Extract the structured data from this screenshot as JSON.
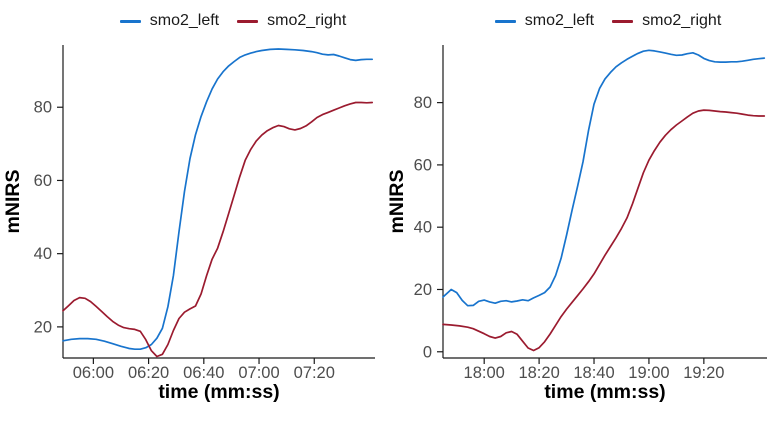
{
  "figure": {
    "background": "#FFFFFF",
    "axis_text_color": "#4D4D4D",
    "axis_title_color": "#000000",
    "axis_line_color": "#1A1A1A"
  },
  "chart_data": [
    {
      "type": "line",
      "title": "",
      "xlabel": "time (mm:ss)",
      "ylabel": "mNIRS",
      "grid": "off",
      "legend_position": "top-center",
      "x_unit": "seconds shown as mm:ss",
      "x_range_s": [
        349,
        462
      ],
      "y_range": [
        11.5,
        97
      ],
      "x_ticks": [
        {
          "value": 360,
          "label": "06:00"
        },
        {
          "value": 380,
          "label": "06:20"
        },
        {
          "value": 400,
          "label": "06:40"
        },
        {
          "value": 420,
          "label": "07:00"
        },
        {
          "value": 440,
          "label": "07:20"
        }
      ],
      "y_ticks": [
        20,
        40,
        60,
        80
      ],
      "series": [
        {
          "name": "smo2_left",
          "color": "#1874CD",
          "points": [
            [
              349,
              16.2
            ],
            [
              352,
              16.6
            ],
            [
              355,
              16.8
            ],
            [
              358,
              16.8
            ],
            [
              361,
              16.6
            ],
            [
              364,
              16.1
            ],
            [
              367,
              15.4
            ],
            [
              370,
              14.7
            ],
            [
              373,
              14.1
            ],
            [
              375,
              13.9
            ],
            [
              377,
              13.9
            ],
            [
              379,
              14.3
            ],
            [
              381,
              15.2
            ],
            [
              383,
              16.9
            ],
            [
              385,
              19.6
            ],
            [
              387,
              25.5
            ],
            [
              389,
              34
            ],
            [
              391,
              46
            ],
            [
              393,
              57
            ],
            [
              395,
              66
            ],
            [
              397,
              72.5
            ],
            [
              399,
              77.5
            ],
            [
              401,
              81.5
            ],
            [
              403,
              85
            ],
            [
              405,
              87.7
            ],
            [
              407,
              89.7
            ],
            [
              409,
              91.3
            ],
            [
              411,
              92.5
            ],
            [
              413,
              93.6
            ],
            [
              415,
              94.3
            ],
            [
              417,
              94.8
            ],
            [
              419,
              95.2
            ],
            [
              421,
              95.5
            ],
            [
              424,
              95.8
            ],
            [
              427,
              95.9
            ],
            [
              430,
              95.8
            ],
            [
              433,
              95.7
            ],
            [
              436,
              95.5
            ],
            [
              439,
              95.2
            ],
            [
              441,
              94.9
            ],
            [
              443,
              94.5
            ],
            [
              445,
              94.3
            ],
            [
              447,
              94.4
            ],
            [
              449,
              94
            ],
            [
              451,
              93.5
            ],
            [
              453,
              93
            ],
            [
              455,
              92.8
            ],
            [
              457,
              93
            ],
            [
              459,
              93.1
            ],
            [
              461,
              93.1
            ]
          ]
        },
        {
          "name": "smo2_right",
          "color": "#9B1B2F",
          "points": [
            [
              349,
              24.4
            ],
            [
              351,
              25.8
            ],
            [
              353,
              27.2
            ],
            [
              355,
              28
            ],
            [
              357,
              27.8
            ],
            [
              359,
              26.9
            ],
            [
              361,
              25.6
            ],
            [
              363,
              24.2
            ],
            [
              365,
              22.8
            ],
            [
              367,
              21.5
            ],
            [
              369,
              20.5
            ],
            [
              371,
              19.8
            ],
            [
              373,
              19.5
            ],
            [
              375,
              19.3
            ],
            [
              377,
              18.8
            ],
            [
              379,
              16.5
            ],
            [
              381,
              13.5
            ],
            [
              383,
              11.9
            ],
            [
              385,
              12.5
            ],
            [
              387,
              15.2
            ],
            [
              389,
              19
            ],
            [
              391,
              22.3
            ],
            [
              393,
              24
            ],
            [
              395,
              24.9
            ],
            [
              397,
              25.7
            ],
            [
              399,
              29
            ],
            [
              401,
              34
            ],
            [
              403,
              38.5
            ],
            [
              405,
              41.5
            ],
            [
              407,
              46
            ],
            [
              409,
              51
            ],
            [
              411,
              56
            ],
            [
              413,
              61
            ],
            [
              415,
              65.5
            ],
            [
              417,
              68.5
            ],
            [
              419,
              70.8
            ],
            [
              421,
              72.4
            ],
            [
              423,
              73.6
            ],
            [
              425,
              74.4
            ],
            [
              427,
              75
            ],
            [
              429,
              74.7
            ],
            [
              431,
              74.1
            ],
            [
              433,
              73.8
            ],
            [
              435,
              74.2
            ],
            [
              437,
              74.9
            ],
            [
              439,
              76
            ],
            [
              441,
              77.2
            ],
            [
              443,
              78
            ],
            [
              445,
              78.6
            ],
            [
              447,
              79.2
            ],
            [
              449,
              79.8
            ],
            [
              451,
              80.4
            ],
            [
              453,
              80.9
            ],
            [
              455,
              81.3
            ],
            [
              457,
              81.3
            ],
            [
              459,
              81.2
            ],
            [
              461,
              81.3
            ]
          ]
        }
      ]
    },
    {
      "type": "line",
      "title": "",
      "xlabel": "time (mm:ss)",
      "ylabel": "mNIRS",
      "grid": "off",
      "legend_position": "top-center",
      "x_unit": "seconds shown as mm:ss",
      "x_range_s": [
        1065,
        1183
      ],
      "y_range": [
        -2,
        98.5
      ],
      "x_ticks": [
        {
          "value": 1080,
          "label": "18:00"
        },
        {
          "value": 1100,
          "label": "18:20"
        },
        {
          "value": 1120,
          "label": "18:40"
        },
        {
          "value": 1140,
          "label": "19:00"
        },
        {
          "value": 1160,
          "label": "19:20"
        }
      ],
      "y_ticks": [
        0,
        20,
        40,
        60,
        80
      ],
      "series": [
        {
          "name": "smo2_left",
          "color": "#1874CD",
          "points": [
            [
              1065,
              17.6
            ],
            [
              1067,
              19.2
            ],
            [
              1068,
              20
            ],
            [
              1070,
              19
            ],
            [
              1072,
              16.5
            ],
            [
              1074,
              14.8
            ],
            [
              1076,
              14.9
            ],
            [
              1078,
              16.2
            ],
            [
              1080,
              16.6
            ],
            [
              1082,
              16
            ],
            [
              1084,
              15.6
            ],
            [
              1086,
              16.2
            ],
            [
              1088,
              16.4
            ],
            [
              1090,
              16
            ],
            [
              1092,
              16.3
            ],
            [
              1094,
              16.7
            ],
            [
              1096,
              16.4
            ],
            [
              1098,
              17.3
            ],
            [
              1100,
              18.1
            ],
            [
              1102,
              19
            ],
            [
              1104,
              20.8
            ],
            [
              1106,
              24.5
            ],
            [
              1108,
              30
            ],
            [
              1110,
              37.5
            ],
            [
              1112,
              45.5
            ],
            [
              1114,
              53
            ],
            [
              1116,
              61
            ],
            [
              1118,
              71
            ],
            [
              1120,
              79.5
            ],
            [
              1122,
              84.5
            ],
            [
              1124,
              87.6
            ],
            [
              1126,
              89.7
            ],
            [
              1128,
              91.5
            ],
            [
              1130,
              92.8
            ],
            [
              1132,
              93.9
            ],
            [
              1134,
              94.9
            ],
            [
              1136,
              95.8
            ],
            [
              1138,
              96.5
            ],
            [
              1140,
              96.8
            ],
            [
              1142,
              96.6
            ],
            [
              1144,
              96.3
            ],
            [
              1146,
              95.9
            ],
            [
              1148,
              95.5
            ],
            [
              1150,
              95.2
            ],
            [
              1152,
              95.3
            ],
            [
              1154,
              95.7
            ],
            [
              1156,
              96
            ],
            [
              1158,
              95.3
            ],
            [
              1160,
              94.2
            ],
            [
              1162,
              93.5
            ],
            [
              1164,
              93.1
            ],
            [
              1166,
              93
            ],
            [
              1168,
              93
            ],
            [
              1170,
              93.1
            ],
            [
              1172,
              93.1
            ],
            [
              1174,
              93.3
            ],
            [
              1176,
              93.6
            ],
            [
              1178,
              93.9
            ],
            [
              1180,
              94.1
            ],
            [
              1182,
              94.3
            ]
          ]
        },
        {
          "name": "smo2_right",
          "color": "#9B1B2F",
          "points": [
            [
              1065,
              8.8
            ],
            [
              1068,
              8.6
            ],
            [
              1071,
              8.3
            ],
            [
              1074,
              7.9
            ],
            [
              1076,
              7.4
            ],
            [
              1078,
              6.6
            ],
            [
              1080,
              5.8
            ],
            [
              1082,
              4.9
            ],
            [
              1084,
              4.4
            ],
            [
              1086,
              4.9
            ],
            [
              1088,
              6.1
            ],
            [
              1090,
              6.5
            ],
            [
              1092,
              5.6
            ],
            [
              1094,
              3.4
            ],
            [
              1096,
              1.2
            ],
            [
              1098,
              0.4
            ],
            [
              1100,
              1.3
            ],
            [
              1102,
              3.2
            ],
            [
              1104,
              5.7
            ],
            [
              1106,
              8.5
            ],
            [
              1108,
              11.3
            ],
            [
              1110,
              13.7
            ],
            [
              1112,
              15.9
            ],
            [
              1114,
              18
            ],
            [
              1116,
              20.2
            ],
            [
              1118,
              22.5
            ],
            [
              1120,
              25
            ],
            [
              1122,
              28
            ],
            [
              1124,
              31
            ],
            [
              1126,
              33.8
            ],
            [
              1128,
              36.6
            ],
            [
              1130,
              39.6
            ],
            [
              1132,
              43
            ],
            [
              1134,
              47.5
            ],
            [
              1136,
              52.5
            ],
            [
              1138,
              57.5
            ],
            [
              1140,
              61.5
            ],
            [
              1142,
              64.6
            ],
            [
              1144,
              67.3
            ],
            [
              1146,
              69.5
            ],
            [
              1148,
              71.3
            ],
            [
              1150,
              72.8
            ],
            [
              1152,
              74.1
            ],
            [
              1154,
              75.4
            ],
            [
              1156,
              76.6
            ],
            [
              1158,
              77.3
            ],
            [
              1160,
              77.6
            ],
            [
              1162,
              77.5
            ],
            [
              1164,
              77.3
            ],
            [
              1166,
              77.1
            ],
            [
              1168,
              77
            ],
            [
              1170,
              76.8
            ],
            [
              1172,
              76.6
            ],
            [
              1174,
              76.3
            ],
            [
              1176,
              76
            ],
            [
              1178,
              75.8
            ],
            [
              1180,
              75.7
            ],
            [
              1182,
              75.7
            ]
          ]
        }
      ]
    }
  ]
}
